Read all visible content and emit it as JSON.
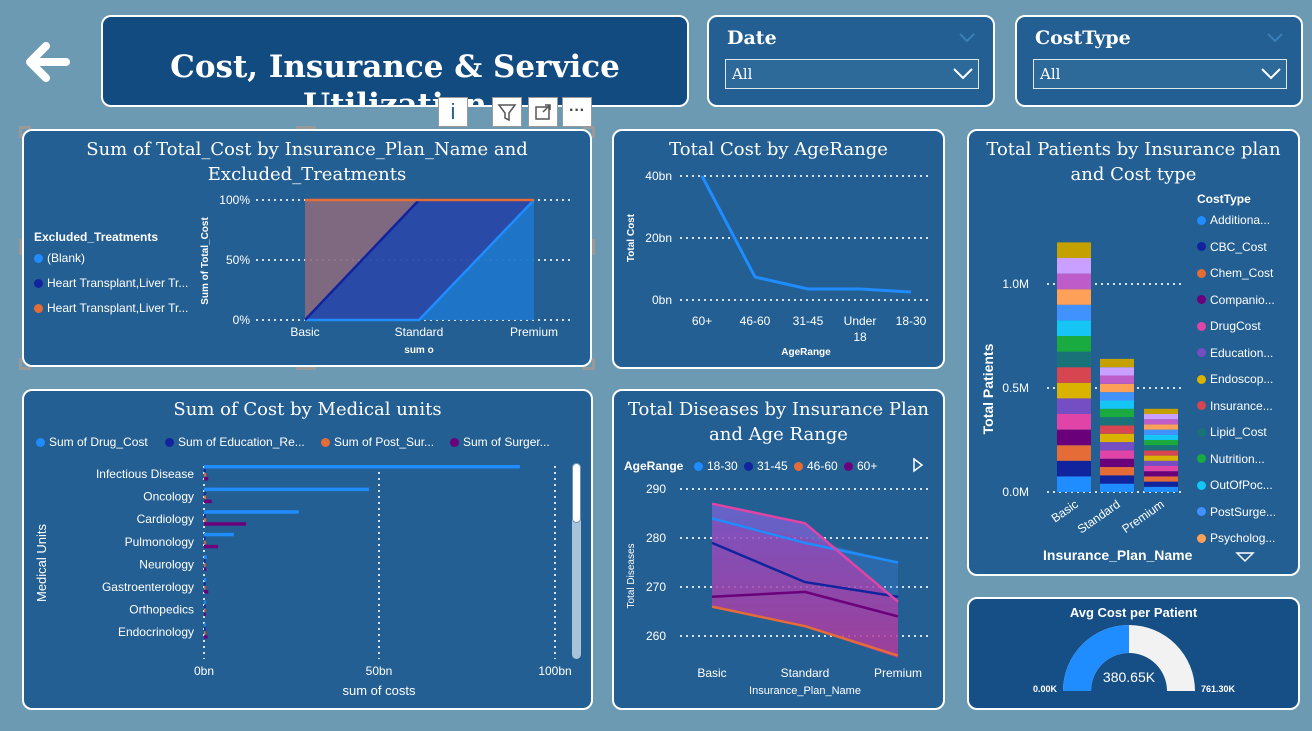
{
  "header": {
    "title": "Cost, Insurance & Service Utilization"
  },
  "slicers": [
    {
      "label": "Date",
      "value": "All"
    },
    {
      "label": "CostType",
      "value": "All"
    }
  ],
  "toolbar": {
    "info_label": "i",
    "more_label": "···"
  },
  "colors": {
    "background": "#6b9ab2",
    "card": "#235f93",
    "blue": "#1f8cff",
    "navy": "#12239e",
    "orange": "#e66c37",
    "purple": "#6b007b",
    "pink": "#e044a7"
  },
  "charts": {
    "total_cost_plan": {
      "title_line1": "Sum of Total_Cost by Insurance_Plan_Name and",
      "title_line2": "Excluded_Treatments",
      "legend_title": "Excluded_Treatments",
      "legend": [
        {
          "name": "(Blank)",
          "color": "#1f8cff"
        },
        {
          "name": "Heart Transplant,Liver Tr...",
          "color": "#12239e"
        },
        {
          "name": "Heart Transplant,Liver Tr...",
          "color": "#e66c37"
        }
      ],
      "y_label": "Sum of Total_Cost",
      "x_label": "sum o",
      "y_ticks": [
        "100%",
        "50%",
        "0%"
      ],
      "x_ticks": [
        "Basic",
        "Standard",
        "Premium"
      ]
    },
    "cost_age": {
      "title": "Total Cost by AgeRange",
      "y_label": "Total Cost",
      "x_label": "AgeRange",
      "y_ticks": [
        "40bn",
        "20bn",
        "0bn"
      ],
      "x_ticks": [
        "60+",
        "46-60",
        "31-45",
        "Under",
        "18-30"
      ],
      "x_tick_extra": "18"
    },
    "patients_plan": {
      "title_line1": "Total Patients by Insurance plan",
      "title_line2": "and Cost type",
      "legend_title": "CostType",
      "legend": [
        {
          "name": "Additiona...",
          "color": "#1f8cff"
        },
        {
          "name": "CBC_Cost",
          "color": "#12239e"
        },
        {
          "name": "Chem_Cost",
          "color": "#e66c37"
        },
        {
          "name": "Companio...",
          "color": "#6b007b"
        },
        {
          "name": "DrugCost",
          "color": "#e044a7"
        },
        {
          "name": "Education...",
          "color": "#744ec2"
        },
        {
          "name": "Endoscop...",
          "color": "#d9b300"
        },
        {
          "name": "Insurance...",
          "color": "#d64550"
        },
        {
          "name": "Lipid_Cost",
          "color": "#197278"
        },
        {
          "name": "Nutrition...",
          "color": "#1aab40"
        },
        {
          "name": "OutOfPoc...",
          "color": "#15c6f4"
        },
        {
          "name": "PostSurge...",
          "color": "#4092ff"
        },
        {
          "name": "Psycholog...",
          "color": "#ffa058"
        }
      ],
      "y_label": "Total Patients",
      "x_label": "Insurance_Plan_Name",
      "y_ticks": [
        "1.0M",
        "0.5M",
        "0.0M"
      ],
      "x_ticks": [
        "Basic",
        "Standard",
        "Premium"
      ]
    },
    "medical_units": {
      "title": "Sum of Cost by Medical units",
      "legend": [
        {
          "name": "Sum of Drug_Cost",
          "color": "#1f8cff"
        },
        {
          "name": "Sum of Education_Re...",
          "color": "#12239e"
        },
        {
          "name": "Sum of Post_Sur...",
          "color": "#e66c37"
        },
        {
          "name": "Sum of Surger...",
          "color": "#6b007b"
        }
      ],
      "y_label": "Medical Units",
      "x_label": "sum of costs",
      "x_ticks": [
        "0bn",
        "50bn",
        "100bn"
      ],
      "categories": [
        "Infectious Disease",
        "Oncology",
        "Cardiology",
        "Pulmonology",
        "Neurology",
        "Gastroenterology",
        "Orthopedics",
        "Endocrinology"
      ]
    },
    "diseases_plan": {
      "title_line1": "Total Diseases by Insurance Plan",
      "title_line2": "and Age Range",
      "legend_title": "AgeRange",
      "legend": [
        {
          "name": "18-30",
          "color": "#1f8cff"
        },
        {
          "name": "31-45",
          "color": "#12239e"
        },
        {
          "name": "46-60",
          "color": "#e66c37"
        },
        {
          "name": "60+",
          "color": "#6b007b"
        }
      ],
      "y_label": "Total Diseases",
      "x_label": "Insurance_Plan_Name",
      "y_ticks": [
        "290",
        "280",
        "270",
        "260"
      ],
      "x_ticks": [
        "Basic",
        "Standard",
        "Premium"
      ]
    },
    "gauge": {
      "title": "Avg Cost per Patient",
      "value_label": "380.65K",
      "min_label": "0.00K",
      "max_label": "761.30K",
      "fraction": 0.5
    }
  },
  "chart_data": [
    {
      "type": "area",
      "title": "Sum of Total_Cost by Insurance_Plan_Name and Excluded_Treatments",
      "categories": [
        "Basic",
        "Standard",
        "Premium"
      ],
      "ylim": [
        0,
        100
      ],
      "series": [
        {
          "name": "(Blank)",
          "values": [
            0,
            0,
            100
          ]
        },
        {
          "name": "Heart Transplant,Liver Tr...",
          "values": [
            0,
            100,
            0
          ]
        },
        {
          "name": "Heart Transplant,Liver Tr...",
          "values": [
            100,
            0,
            0
          ]
        }
      ],
      "xlabel": "sum o",
      "ylabel": "Sum of Total_Cost"
    },
    {
      "type": "line",
      "title": "Total Cost by AgeRange",
      "categories": [
        "60+",
        "46-60",
        "31-45",
        "Under 18",
        "18-30"
      ],
      "values": [
        40,
        7.5,
        3.5,
        3.3,
        2.5
      ],
      "ylim": [
        0,
        40
      ],
      "xlabel": "AgeRange",
      "ylabel": "Total Cost"
    },
    {
      "type": "bar",
      "title": "Total Patients by Insurance plan and Cost type",
      "categories": [
        "Basic",
        "Standard",
        "Premium"
      ],
      "ylim": [
        0,
        1.3
      ],
      "series": [
        {
          "name": "Additiona...",
          "values": [
            0.075,
            0.04,
            0.025
          ]
        },
        {
          "name": "CBC_Cost",
          "values": [
            0.075,
            0.04,
            0.025
          ]
        },
        {
          "name": "Chem_Cost",
          "values": [
            0.075,
            0.04,
            0.025
          ]
        },
        {
          "name": "Companio...",
          "values": [
            0.075,
            0.04,
            0.025
          ]
        },
        {
          "name": "DrugCost",
          "values": [
            0.075,
            0.04,
            0.025
          ]
        },
        {
          "name": "Education...",
          "values": [
            0.075,
            0.04,
            0.025
          ]
        },
        {
          "name": "Endoscop...",
          "values": [
            0.075,
            0.04,
            0.025
          ]
        },
        {
          "name": "Insurance...",
          "values": [
            0.075,
            0.04,
            0.025
          ]
        },
        {
          "name": "Lipid_Cost",
          "values": [
            0.075,
            0.04,
            0.025
          ]
        },
        {
          "name": "Nutrition...",
          "values": [
            0.075,
            0.04,
            0.025
          ]
        },
        {
          "name": "OutOfPoc...",
          "values": [
            0.075,
            0.04,
            0.025
          ]
        },
        {
          "name": "PostSurge...",
          "values": [
            0.075,
            0.04,
            0.025
          ]
        },
        {
          "name": "Psycholog...",
          "values": [
            0.075,
            0.04,
            0.025
          ]
        },
        {
          "name": "",
          "values": [
            0.075,
            0.04,
            0.025
          ]
        },
        {
          "name": "",
          "values": [
            0.075,
            0.04,
            0.025
          ]
        },
        {
          "name": "",
          "values": [
            0.075,
            0.04,
            0.025
          ]
        }
      ],
      "xlabel": "Insurance_Plan_Name",
      "ylabel": "Total Patients"
    },
    {
      "type": "bar",
      "title": "Sum of Cost by Medical units",
      "categories": [
        "Infectious Disease",
        "Oncology",
        "Cardiology",
        "Pulmonology",
        "Neurology",
        "Gastroenterology",
        "Orthopedics",
        "Endocrinology"
      ],
      "xlim": [
        0,
        100
      ],
      "series": [
        {
          "name": "Sum of Drug_Cost",
          "values": [
            90,
            47,
            27,
            8.5,
            0.8,
            0.6,
            0.5,
            0.4
          ]
        },
        {
          "name": "Sum of Education_Re...",
          "values": [
            0.5,
            0.5,
            0.5,
            0.4,
            0.3,
            0.3,
            0.3,
            0.2
          ]
        },
        {
          "name": "Sum of Post_Sur...",
          "values": [
            0.6,
            0.6,
            0.6,
            0.5,
            0.4,
            0.4,
            0.3,
            0.3
          ]
        },
        {
          "name": "Sum of Surger...",
          "values": [
            1.2,
            2.2,
            12,
            4,
            0.6,
            1.2,
            0.5,
            1.0
          ]
        }
      ],
      "xlabel": "sum of costs",
      "ylabel": "Medical Units"
    },
    {
      "type": "area",
      "title": "Total Diseases by Insurance Plan and Age Range",
      "categories": [
        "Basic",
        "Standard",
        "Premium"
      ],
      "ylim": [
        255,
        292
      ],
      "series": [
        {
          "name": "18-30",
          "values": [
            284,
            279,
            275
          ]
        },
        {
          "name": "31-45",
          "values": [
            279,
            271,
            268
          ]
        },
        {
          "name": "46-60",
          "values": [
            266,
            262,
            256
          ]
        },
        {
          "name": "60+",
          "values": [
            268,
            269,
            264
          ]
        },
        {
          "name": "",
          "values": [
            287,
            283,
            267
          ]
        }
      ],
      "xlabel": "Insurance_Plan_Name",
      "ylabel": "Total Diseases"
    }
  ]
}
